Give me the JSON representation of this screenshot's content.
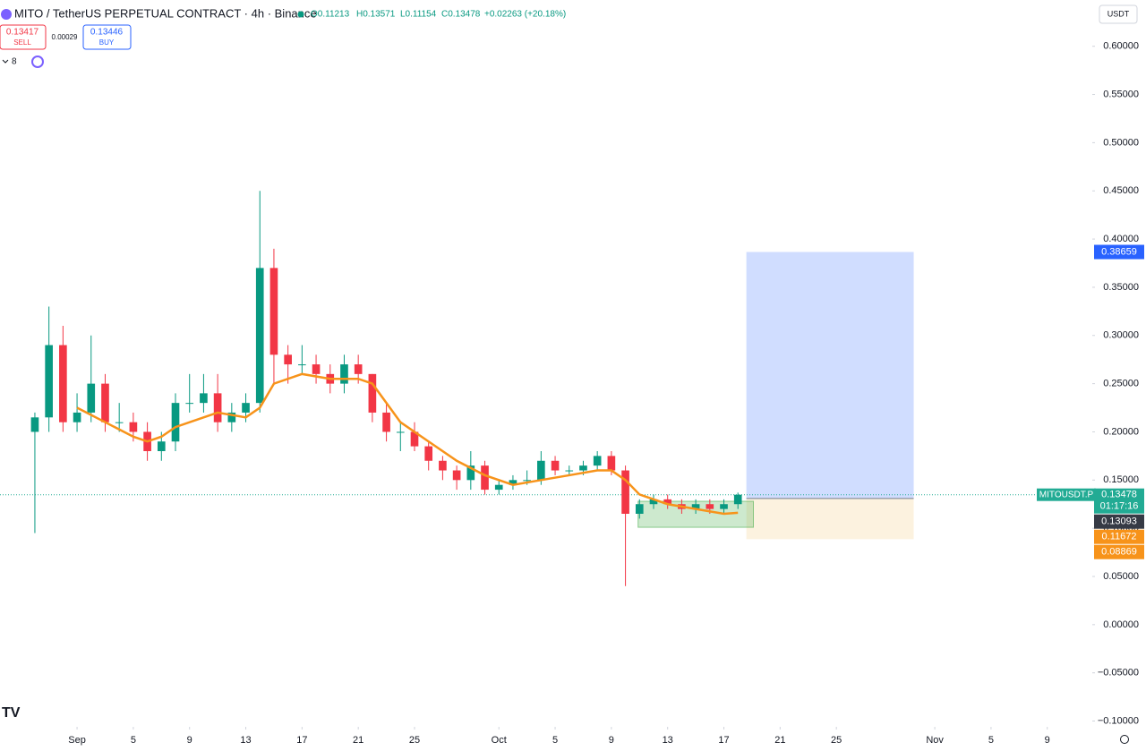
{
  "header": {
    "title": "MITO / TetherUS PERPETUAL CONTRACT · 4h · Binance",
    "ohlc": [
      "O0.11213",
      "H0.13571",
      "L0.11154",
      "C0.13478",
      "+0.02263 (+20.18%)"
    ],
    "currency": "USDT"
  },
  "trade": {
    "sell_price": "0.13417",
    "sell": "SELL",
    "spread": "0.00029",
    "buy_price": "0.13446",
    "buy": "BUY",
    "indicators": "8"
  },
  "chart_data": {
    "type": "candlestick",
    "x": [
      -2,
      -1,
      0,
      1,
      2,
      3,
      4,
      5,
      6,
      7,
      8,
      9,
      10,
      11,
      12,
      13,
      14,
      15,
      16,
      17,
      18,
      19,
      20,
      21,
      22,
      23,
      24,
      25,
      26,
      27,
      28,
      29,
      30,
      31,
      32,
      33,
      34,
      35,
      36,
      37,
      38,
      39,
      40,
      41,
      42,
      43,
      44,
      45,
      46,
      47,
      48
    ],
    "open": [
      0.2,
      0.215,
      0.29,
      0.21,
      0.22,
      0.25,
      0.21,
      0.21,
      0.2,
      0.18,
      0.19,
      0.23,
      0.23,
      0.24,
      0.21,
      0.22,
      0.23,
      0.37,
      0.28,
      0.27,
      0.27,
      0.26,
      0.25,
      0.27,
      0.26,
      0.22,
      0.2,
      0.2,
      0.185,
      0.17,
      0.16,
      0.15,
      0.165,
      0.14,
      0.145,
      0.15,
      0.15,
      0.17,
      0.16,
      0.16,
      0.165,
      0.175,
      0.16,
      0.115,
      0.125,
      0.13,
      0.125,
      0.12,
      0.125,
      0.12,
      0.125
    ],
    "high": [
      0.22,
      0.33,
      0.31,
      0.24,
      0.3,
      0.26,
      0.23,
      0.22,
      0.21,
      0.2,
      0.24,
      0.26,
      0.26,
      0.26,
      0.23,
      0.24,
      0.45,
      0.39,
      0.29,
      0.29,
      0.28,
      0.27,
      0.28,
      0.28,
      0.26,
      0.23,
      0.21,
      0.21,
      0.19,
      0.175,
      0.165,
      0.18,
      0.17,
      0.15,
      0.155,
      0.16,
      0.18,
      0.175,
      0.165,
      0.17,
      0.18,
      0.18,
      0.165,
      0.13,
      0.135,
      0.135,
      0.13,
      0.13,
      0.13,
      0.13,
      0.137
    ],
    "low": [
      0.095,
      0.2,
      0.2,
      0.2,
      0.21,
      0.2,
      0.2,
      0.19,
      0.17,
      0.17,
      0.18,
      0.22,
      0.22,
      0.2,
      0.2,
      0.21,
      0.22,
      0.25,
      0.25,
      0.26,
      0.25,
      0.24,
      0.24,
      0.25,
      0.21,
      0.19,
      0.18,
      0.18,
      0.16,
      0.15,
      0.14,
      0.14,
      0.135,
      0.135,
      0.14,
      0.145,
      0.145,
      0.155,
      0.155,
      0.155,
      0.16,
      0.155,
      0.04,
      0.11,
      0.12,
      0.12,
      0.115,
      0.115,
      0.115,
      0.115,
      0.12
    ],
    "close": [
      0.215,
      0.29,
      0.21,
      0.22,
      0.25,
      0.21,
      0.21,
      0.2,
      0.18,
      0.19,
      0.23,
      0.23,
      0.24,
      0.21,
      0.22,
      0.23,
      0.37,
      0.28,
      0.27,
      0.27,
      0.26,
      0.25,
      0.27,
      0.26,
      0.22,
      0.2,
      0.2,
      0.185,
      0.17,
      0.16,
      0.15,
      0.165,
      0.14,
      0.145,
      0.15,
      0.15,
      0.17,
      0.16,
      0.16,
      0.165,
      0.175,
      0.16,
      0.115,
      0.125,
      0.13,
      0.125,
      0.12,
      0.125,
      0.12,
      0.125,
      0.13478
    ],
    "up_color": "#089981",
    "down_color": "#f23645",
    "ma": {
      "color": "#f7931a",
      "x": [
        1,
        3,
        5,
        6,
        7,
        8,
        10,
        11,
        13,
        14,
        15,
        17,
        19,
        21,
        22,
        23,
        24,
        26,
        28,
        30,
        32,
        34,
        36,
        38,
        39,
        40,
        41,
        43,
        45,
        47,
        48
      ],
      "values": [
        0.225,
        0.21,
        0.195,
        0.19,
        0.195,
        0.205,
        0.215,
        0.22,
        0.215,
        0.225,
        0.25,
        0.26,
        0.255,
        0.255,
        0.25,
        0.23,
        0.21,
        0.19,
        0.17,
        0.155,
        0.145,
        0.15,
        0.155,
        0.16,
        0.16,
        0.15,
        0.135,
        0.125,
        0.12,
        0.115,
        0.116
      ]
    },
    "position": {
      "x": [
        48.6,
        60.5
      ],
      "entry": 0.13093,
      "target": 0.38659,
      "stop": 0.08869
    },
    "range_box": {
      "x": [
        40.9,
        49.1
      ],
      "y": [
        0.101,
        0.128
      ]
    },
    "last_price": {
      "symbol": "MITOUSDT.P",
      "value": 0.13478,
      "countdown": "01:17:16",
      "color": "#22ab94"
    },
    "markers": [
      {
        "value": 0.38659,
        "color": "#2962ff"
      },
      {
        "value": 0.13093,
        "color": "#363a45"
      },
      {
        "value": 0.11672,
        "color": "#f7931a"
      },
      {
        "value": 0.08869,
        "color": "#f7931a"
      }
    ],
    "xlim": [
      -4.48,
      73.2
    ],
    "ylim": [
      -0.106,
      0.648
    ],
    "grid": false,
    "xticks": [
      {
        "value": 1,
        "label": "Sep"
      },
      5,
      9,
      13,
      17,
      21,
      25,
      {
        "value": 31,
        "label": "Oct"
      },
      {
        "value": 35,
        "label": "5"
      },
      {
        "value": 39,
        "label": "9"
      },
      {
        "value": 43,
        "label": "13"
      },
      {
        "value": 47,
        "label": "17"
      },
      {
        "value": 51,
        "label": "21"
      },
      {
        "value": 55,
        "label": "25"
      },
      {
        "value": 62,
        "label": "Nov"
      },
      {
        "value": 66,
        "label": "5"
      },
      {
        "value": 70,
        "label": "9"
      }
    ],
    "yticks": [
      {
        "value": -0.1,
        "label": "−0.10000"
      },
      {
        "value": -0.05,
        "label": "−0.05000"
      },
      {
        "value": 0,
        "label": "0.00000"
      },
      {
        "value": 0.05,
        "label": "0.05000"
      },
      {
        "value": 0.1,
        "label": "0.10000"
      },
      {
        "value": 0.15,
        "label": "0.15000"
      },
      {
        "value": 0.2,
        "label": "0.20000"
      },
      {
        "value": 0.25,
        "label": "0.25000"
      },
      {
        "value": 0.3,
        "label": "0.30000"
      },
      {
        "value": 0.35,
        "label": "0.35000"
      },
      {
        "value": 0.4,
        "label": "0.40000"
      },
      {
        "value": 0.45,
        "label": "0.45000"
      },
      {
        "value": 0.5,
        "label": "0.50000"
      },
      {
        "value": 0.55,
        "label": "0.55000"
      },
      {
        "value": 0.6,
        "label": "0.60000"
      }
    ]
  }
}
